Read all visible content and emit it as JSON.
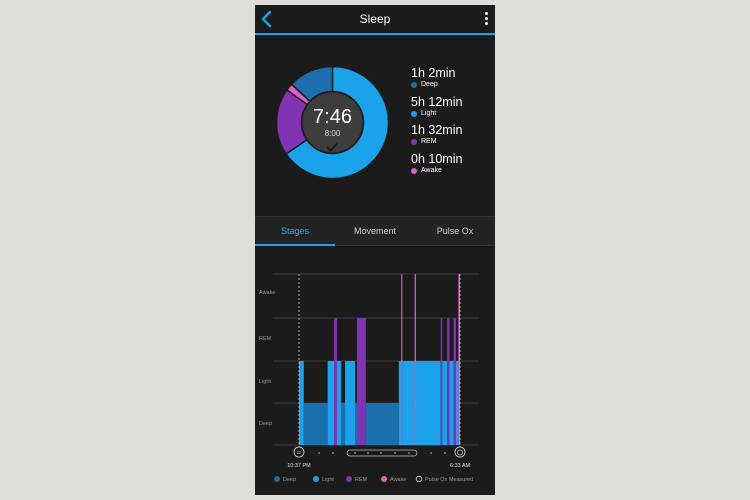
{
  "header": {
    "title": "Sleep"
  },
  "summary": {
    "total": "7:46",
    "goal": "8:00",
    "stages": [
      {
        "value": "1h 2min",
        "label": "Deep",
        "color": "#1b6fad",
        "minutes": 62
      },
      {
        "value": "5h 12min",
        "label": "Light",
        "color": "#1aa3ea",
        "minutes": 312
      },
      {
        "value": "1h 32min",
        "label": "REM",
        "color": "#8233b4",
        "minutes": 92
      },
      {
        "value": "0h 10min",
        "label": "Awake",
        "color": "#e35ec5",
        "minutes": 10
      }
    ]
  },
  "tabs": [
    {
      "label": "Stages",
      "active": true
    },
    {
      "label": "Movement",
      "active": false
    },
    {
      "label": "Pulse Ox",
      "active": false
    }
  ],
  "chart_data": {
    "type": "bar",
    "y_levels": [
      "Awake",
      "REM",
      "Light",
      "Deep"
    ],
    "x_start": "10:37 PM",
    "x_end": "6:33 AM",
    "start_icon": "sleep-icon",
    "end_icon": "alarm-clock-icon",
    "legend": [
      "Deep",
      "Light",
      "REM",
      "Awake",
      "Pulse Ox Measured"
    ],
    "colors": {
      "Deep": "#1b6fad",
      "Light": "#1aa3ea",
      "REM": "#8233b4",
      "Awake": "#e35ec5"
    },
    "segments": [
      {
        "stage": "Light",
        "start": 0.0,
        "end": 0.03
      },
      {
        "stage": "Deep",
        "start": 0.03,
        "end": 0.178
      },
      {
        "stage": "Light",
        "start": 0.178,
        "end": 0.218
      },
      {
        "stage": "REM",
        "start": 0.218,
        "end": 0.236
      },
      {
        "stage": "Light",
        "start": 0.236,
        "end": 0.262
      },
      {
        "stage": "Deep",
        "start": 0.262,
        "end": 0.286
      },
      {
        "stage": "Light",
        "start": 0.286,
        "end": 0.348
      },
      {
        "stage": "Deep",
        "start": 0.348,
        "end": 0.36
      },
      {
        "stage": "REM",
        "start": 0.36,
        "end": 0.415
      },
      {
        "stage": "Deep",
        "start": 0.415,
        "end": 0.62
      },
      {
        "stage": "Light",
        "start": 0.62,
        "end": 0.635
      },
      {
        "stage": "Awake",
        "start": 0.635,
        "end": 0.642
      },
      {
        "stage": "Light",
        "start": 0.642,
        "end": 0.718
      },
      {
        "stage": "Awake",
        "start": 0.718,
        "end": 0.726
      },
      {
        "stage": "Light",
        "start": 0.726,
        "end": 0.88
      },
      {
        "stage": "REM",
        "start": 0.88,
        "end": 0.89
      },
      {
        "stage": "Light",
        "start": 0.89,
        "end": 0.92
      },
      {
        "stage": "REM",
        "start": 0.92,
        "end": 0.935
      },
      {
        "stage": "Light",
        "start": 0.935,
        "end": 0.96
      },
      {
        "stage": "REM",
        "start": 0.96,
        "end": 0.975
      },
      {
        "stage": "Light",
        "start": 0.975,
        "end": 0.99
      },
      {
        "stage": "Awake",
        "start": 0.99,
        "end": 1.0
      }
    ]
  }
}
